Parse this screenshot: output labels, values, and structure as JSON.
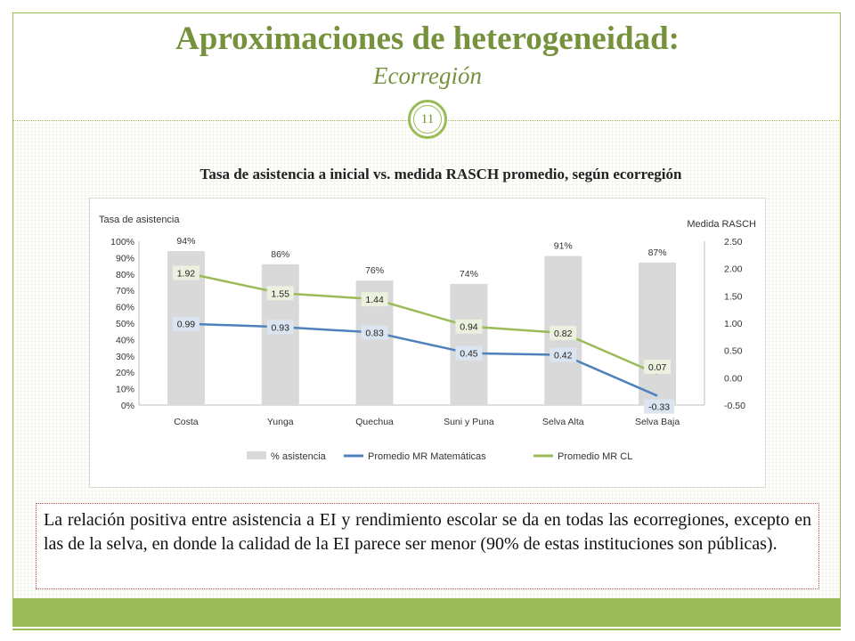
{
  "slide": {
    "title": "Aproximaciones  de heterogeneidad:",
    "subtitle": "Ecorregión",
    "page_number": "11",
    "note": "La relación positiva entre asistencia a EI y rendimiento escolar se da en todas las ecorregiones, excepto en las de la selva, en donde la calidad de la EI parece ser menor (90% de estas instituciones son públicas).",
    "colors": {
      "accent": "#9bbb59",
      "title": "#76923c",
      "note_border": "#c0504d"
    }
  },
  "chart_data": {
    "type": "bar",
    "title": "Tasa de asistencia a inicial vs. medida RASCH promedio, según ecorregión",
    "ylabel": "Tasa de asistencia",
    "y2label": "Medida RASCH",
    "categories": [
      "Costa",
      "Yunga",
      "Quechua",
      "Suni y Puna",
      "Selva Alta",
      "Selva Baja"
    ],
    "ylim": [
      0,
      100
    ],
    "y2lim": [
      -0.5,
      2.5
    ],
    "yticks": [
      "0%",
      "10%",
      "20%",
      "30%",
      "40%",
      "50%",
      "60%",
      "70%",
      "80%",
      "90%",
      "100%"
    ],
    "y2ticks": [
      "-0.50",
      "0.00",
      "0.50",
      "1.00",
      "1.50",
      "2.00",
      "2.50"
    ],
    "legend_position": "bottom",
    "series": [
      {
        "name": "% asistencia",
        "kind": "bar",
        "axis": "left",
        "color": "#d9d9d9",
        "values": [
          94,
          86,
          76,
          74,
          91,
          87
        ],
        "labels": [
          "94%",
          "86%",
          "76%",
          "74%",
          "91%",
          "87%"
        ]
      },
      {
        "name": "Promedio MR Matemáticas",
        "kind": "line",
        "axis": "right",
        "color": "#4f81bd",
        "values": [
          0.99,
          0.93,
          0.83,
          0.45,
          0.42,
          -0.33
        ],
        "labels": [
          "0.99",
          "0.93",
          "0.83",
          "0.45",
          "0.42",
          "-0.33"
        ]
      },
      {
        "name": "Promedio MR CL",
        "kind": "line",
        "axis": "right",
        "color": "#9bbb59",
        "values": [
          1.92,
          1.55,
          1.44,
          0.94,
          0.82,
          0.07
        ],
        "labels": [
          "1.92",
          "1.55",
          "1.44",
          "0.94",
          "0.82",
          "0.07"
        ]
      }
    ]
  }
}
